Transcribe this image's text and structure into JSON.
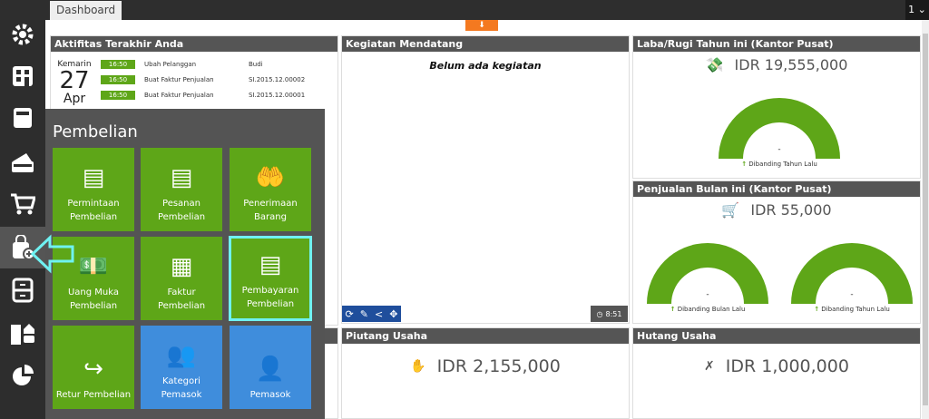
{
  "topbar": {
    "tab": "Dashboard",
    "user_menu": "1 ⌄"
  },
  "toggle_icon": "arrow-down",
  "activity": {
    "title": "Aktifitas Terakhir Anda",
    "day_label": "Kemarin",
    "day": "27",
    "month": "Apr",
    "rows": [
      {
        "time": "16:50",
        "action": "Ubah Pelanggan",
        "ref": "Budi"
      },
      {
        "time": "16:50",
        "action": "Buat Faktur Penjualan",
        "ref": "SI.2015.12.00002"
      },
      {
        "time": "16:50",
        "action": "Buat Faktur Penjualan",
        "ref": "SI.2015.12.00001"
      }
    ]
  },
  "upcoming": {
    "title": "Kegiatan Mendatang",
    "empty": "Belum ada kegiatan",
    "time": "8:51"
  },
  "profit": {
    "title": "Laba/Rugi Tahun ini (Kantor Pusat)",
    "value": "IDR 19,555,000",
    "gauge_value": "-",
    "compare": "Dibanding Tahun Lalu"
  },
  "sales": {
    "title": "Penjualan Bulan ini (Kantor Pusat)",
    "value": "IDR 55,000",
    "gauges": [
      {
        "value": "-",
        "compare": "Dibanding Bulan Lalu"
      },
      {
        "value": "-",
        "compare": "Dibanding Tahun Lalu"
      }
    ]
  },
  "receivable": {
    "title": "Piutang Usaha",
    "value": "IDR 2,155,000"
  },
  "payable": {
    "title": "Hutang Usaha",
    "value": "IDR 1,000,000"
  },
  "flyout": {
    "title": "Pembelian",
    "tiles": [
      {
        "l1": "Permintaan",
        "l2": "Pembelian"
      },
      {
        "l1": "Pesanan",
        "l2": "Pembelian"
      },
      {
        "l1": "Penerimaan",
        "l2": "Barang"
      },
      {
        "l1": "Uang Muka",
        "l2": "Pembelian"
      },
      {
        "l1": "Faktur",
        "l2": "Pembelian"
      },
      {
        "l1": "Pembayaran",
        "l2": "Pembelian"
      },
      {
        "l1": "Retur Pembelian",
        "l2": ""
      },
      {
        "l1": "Kategori",
        "l2": "Pemasok"
      },
      {
        "l1": "Pemasok",
        "l2": ""
      }
    ]
  },
  "colors": {
    "green": "#5ea618",
    "blue": "#3f8ddc",
    "highlight": "#6ff2f2",
    "orange": "#f47920",
    "header": "#555555"
  }
}
